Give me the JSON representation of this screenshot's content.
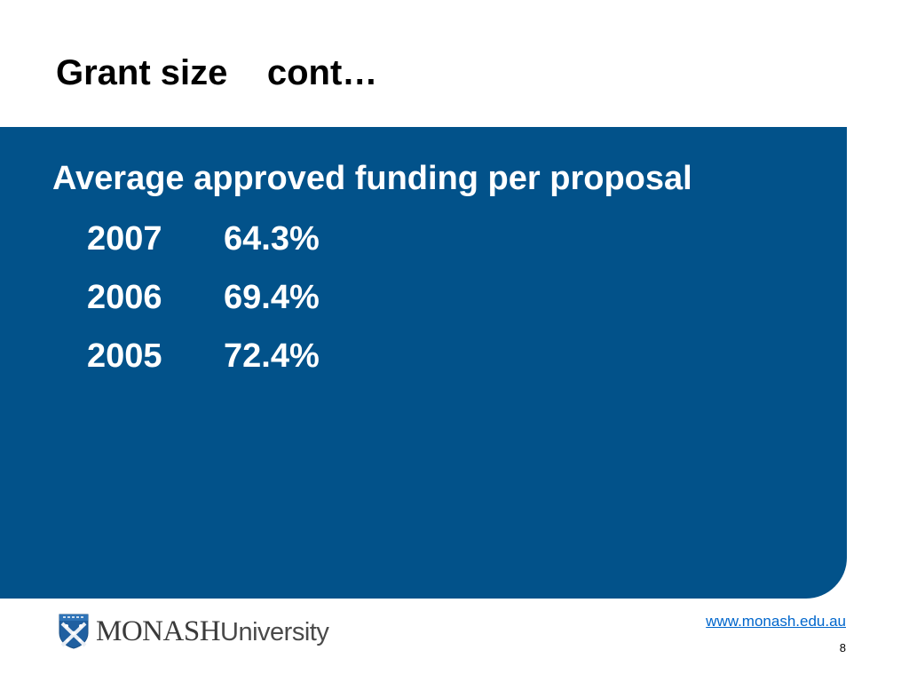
{
  "slide": {
    "title": "Grant size    cont…",
    "heading": "Average approved funding per proposal",
    "rows": [
      {
        "year": "2007",
        "value": "64.3%"
      },
      {
        "year": "2006",
        "value": "69.4%"
      },
      {
        "year": "2005",
        "value": "72.4%"
      }
    ]
  },
  "footer": {
    "logo_wordmark": "MONASH",
    "logo_subword": "University",
    "url": "www.monash.edu.au",
    "page_number": "8"
  },
  "colors": {
    "panel": "#02528a",
    "link": "#0066cc"
  }
}
